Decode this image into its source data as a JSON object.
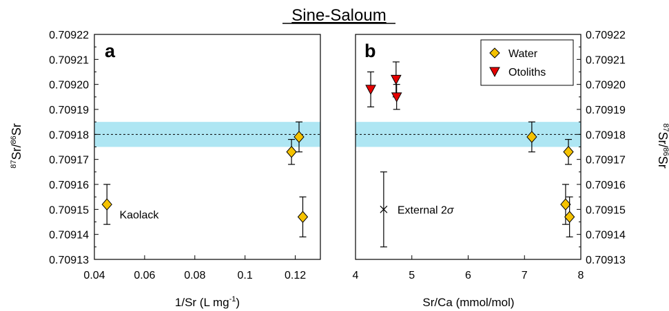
{
  "title": "Sine-Saloum",
  "colors": {
    "water": "#f5c200",
    "otolith": "#e60000",
    "band": "#aee6f3",
    "outline": "#000000"
  },
  "shared_y": {
    "label_sup1": "87",
    "label_mid": "Sr/",
    "label_sup2": "86",
    "label_end": "Sr",
    "ticks": [
      "0.70913",
      "0.70914",
      "0.70915",
      "0.70916",
      "0.70917",
      "0.70918",
      "0.70919",
      "0.70920",
      "0.70921",
      "0.70922"
    ]
  },
  "chart_data": [
    {
      "type": "scatter",
      "panel_label": "a",
      "xlabel_prefix": "1/Sr (L mg",
      "xlabel_sup": "-1",
      "xlabel_suffix": ")",
      "xlim": [
        0.04,
        0.13
      ],
      "ylim": [
        0.70913,
        0.70922
      ],
      "x_ticks": [
        "0.04",
        "0.06",
        "0.08",
        "0.1",
        "0.12"
      ],
      "reference_line": 0.70918,
      "reference_band": [
        0.709175,
        0.709185
      ],
      "annotations": [
        {
          "text": "Kaolack",
          "x": 0.05,
          "y": 0.709148
        }
      ],
      "series": [
        {
          "name": "Water",
          "marker": "diamond",
          "points": [
            {
              "x": 0.045,
              "y": 0.709152,
              "err": 8e-06
            },
            {
              "x": 0.1185,
              "y": 0.709173,
              "err": 5e-06
            },
            {
              "x": 0.1215,
              "y": 0.709179,
              "err": 6e-06
            },
            {
              "x": 0.123,
              "y": 0.709147,
              "err": 8e-06
            }
          ]
        }
      ]
    },
    {
      "type": "scatter",
      "panel_label": "b",
      "xlabel": "Sr/Ca (mmol/mol)",
      "xlim": [
        4,
        8
      ],
      "ylim": [
        0.70913,
        0.70922
      ],
      "x_ticks": [
        "4",
        "5",
        "6",
        "7",
        "8"
      ],
      "reference_line": 0.70918,
      "reference_band": [
        0.709175,
        0.709185
      ],
      "legend_position": "top-right",
      "external_error": {
        "label": "External 2",
        "symbol": "σ",
        "x": 4.5,
        "y": 0.70915,
        "err": 1.5e-05
      },
      "series": [
        {
          "name": "Water",
          "marker": "diamond",
          "points": [
            {
              "x": 7.13,
              "y": 0.709179,
              "err": 6e-06
            },
            {
              "x": 7.78,
              "y": 0.709173,
              "err": 5e-06
            },
            {
              "x": 7.73,
              "y": 0.709152,
              "err": 8e-06
            },
            {
              "x": 7.8,
              "y": 0.709147,
              "err": 8e-06
            }
          ]
        },
        {
          "name": "Otoliths",
          "marker": "triangle-down",
          "points": [
            {
              "x": 4.27,
              "y": 0.709198,
              "err": 7e-06
            },
            {
              "x": 4.72,
              "y": 0.709202,
              "err": 7e-06
            },
            {
              "x": 4.73,
              "y": 0.709195,
              "err": 5e-06
            }
          ]
        }
      ]
    }
  ]
}
